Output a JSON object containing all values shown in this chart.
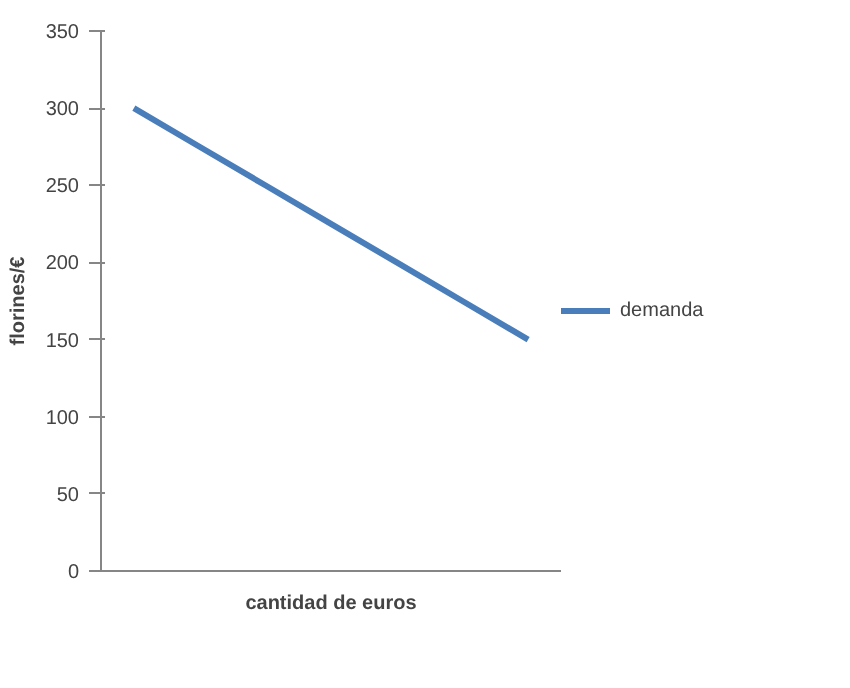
{
  "chart_data": {
    "type": "line",
    "xlabel": "cantidad de euros",
    "ylabel": "florines/€",
    "categories": [
      null,
      null,
      null,
      null,
      null,
      null,
      null
    ],
    "series": [
      {
        "name": "demanda",
        "color": "#4a7ebb",
        "values": [
          300,
          275,
          250,
          225,
          200,
          175,
          150
        ]
      }
    ],
    "ylim": [
      0,
      350
    ],
    "yticks": [
      0,
      50,
      100,
      150,
      200,
      250,
      300,
      350
    ],
    "grid": false,
    "legend": "right",
    "marker": "none",
    "line_style": "solid"
  }
}
